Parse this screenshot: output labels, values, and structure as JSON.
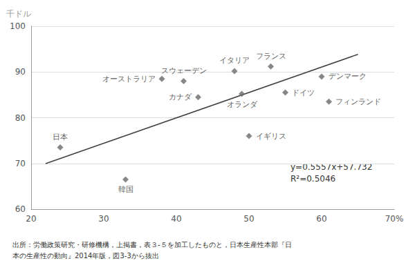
{
  "chart_data": {
    "type": "scatter",
    "ylabel": "千ドル",
    "xlim": [
      20,
      70
    ],
    "ylim": [
      60,
      100
    ],
    "xticks": [
      20,
      30,
      40,
      50,
      60,
      {
        "value": 70,
        "label": "70%"
      }
    ],
    "yticks": [
      60,
      70,
      80,
      90,
      100
    ],
    "grid": "y",
    "series": [
      {
        "type": "line",
        "color": "#404040",
        "x": [
          22,
          65
        ],
        "values": [
          69.9574,
          93.8525
        ]
      },
      {
        "type": "scatter",
        "color": "#696969",
        "marker": "diamond",
        "x": [
          24,
          33,
          38,
          41,
          43,
          48,
          49,
          50,
          53,
          55,
          60,
          61
        ],
        "values": [
          73.5,
          66.5,
          88.5,
          88.0,
          84.5,
          90.2,
          85.2,
          76.0,
          91.2,
          85.5,
          89.0,
          83.5
        ],
        "labels": [
          "日本",
          "韓国",
          "オーストラリア",
          "スウェーデン",
          "カナダ",
          "イタリア",
          "オランダ",
          "イギリス",
          "フランス",
          "ドイツ",
          "デンマーク",
          "フィンランド"
        ]
      }
    ],
    "annotations": [
      "y=0.5557x+57.732",
      "R²=0.5046"
    ],
    "caption": [
      "出所：労働政策研究・研修機構，上掲書，表３-５を加工したものと，日本生産性本部『日",
      "本の生産性の動向』2014年版，図3-3から抜出"
    ]
  }
}
